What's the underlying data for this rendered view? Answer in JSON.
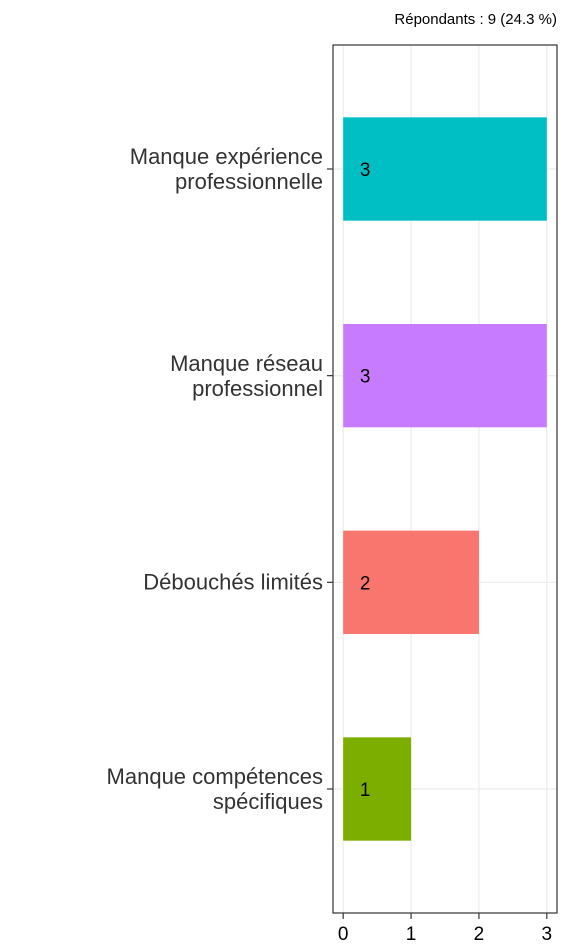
{
  "chart_data": {
    "type": "bar",
    "orientation": "horizontal",
    "subtitle": "Répondants : 9 (24.3 %)",
    "categories": [
      "Manque expérience\nprofessionnelle",
      "Manque réseau\nprofessionnel",
      "Débouchés limités",
      "Manque compétences\nspécifiques"
    ],
    "values": [
      3,
      3,
      2,
      1
    ],
    "colors": [
      "#00BFC4",
      "#C77CFF",
      "#F8766D",
      "#7CAE00"
    ],
    "xlim": [
      -0.15,
      3.15
    ],
    "xticks": [
      0,
      1,
      2,
      3
    ],
    "grid": true
  }
}
